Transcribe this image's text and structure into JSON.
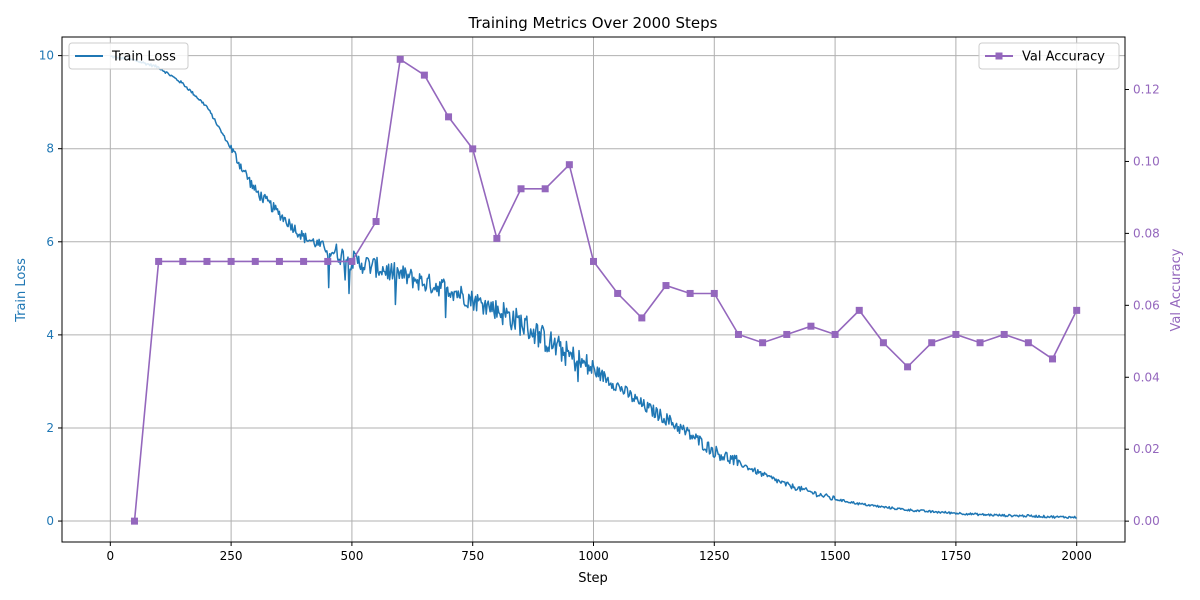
{
  "chart_data": {
    "type": "line",
    "title": "Training Metrics Over 2000 Steps",
    "xlabel": "Step",
    "ylabel_left": "Train Loss",
    "ylabel_right": "Val Accuracy",
    "xlim": [
      -100,
      2100
    ],
    "ylim_left": [
      -0.45,
      10.4
    ],
    "ylim_right": [
      -0.0058,
      0.1346
    ],
    "x_ticks": [
      0,
      250,
      500,
      750,
      1000,
      1250,
      1500,
      1750,
      2000
    ],
    "y_ticks_left": [
      0,
      2,
      4,
      6,
      8,
      10
    ],
    "y_ticks_right": [
      0.0,
      0.02,
      0.04,
      0.06,
      0.08,
      0.1,
      0.12
    ],
    "grid": true,
    "colors": {
      "train_loss": "#1f77b4",
      "val_accuracy": "#9467bd"
    },
    "series": [
      {
        "name": "Train Loss",
        "axis": "left",
        "marker": "none",
        "legend_position": "top-left",
        "points": [
          [
            0,
            9.98
          ],
          [
            50,
            9.9
          ],
          [
            100,
            9.75
          ],
          [
            150,
            9.4
          ],
          [
            200,
            8.9
          ],
          [
            250,
            8.0
          ],
          [
            300,
            7.1
          ],
          [
            350,
            6.6
          ],
          [
            400,
            6.1
          ],
          [
            450,
            5.85
          ],
          [
            500,
            5.6
          ],
          [
            550,
            5.45
          ],
          [
            600,
            5.3
          ],
          [
            650,
            5.12
          ],
          [
            700,
            5.0
          ],
          [
            750,
            4.75
          ],
          [
            800,
            4.55
          ],
          [
            850,
            4.25
          ],
          [
            900,
            3.9
          ],
          [
            950,
            3.55
          ],
          [
            1000,
            3.25
          ],
          [
            1050,
            2.9
          ],
          [
            1100,
            2.5
          ],
          [
            1150,
            2.2
          ],
          [
            1200,
            1.85
          ],
          [
            1250,
            1.5
          ],
          [
            1300,
            1.25
          ],
          [
            1350,
            1.0
          ],
          [
            1400,
            0.78
          ],
          [
            1450,
            0.62
          ],
          [
            1500,
            0.47
          ],
          [
            1550,
            0.37
          ],
          [
            1600,
            0.3
          ],
          [
            1650,
            0.24
          ],
          [
            1700,
            0.2
          ],
          [
            1750,
            0.17
          ],
          [
            1800,
            0.14
          ],
          [
            1850,
            0.12
          ],
          [
            1900,
            0.11
          ],
          [
            1950,
            0.09
          ],
          [
            2000,
            0.08
          ]
        ]
      },
      {
        "name": "Val Accuracy",
        "axis": "right",
        "marker": "square",
        "legend_position": "top-right",
        "points": [
          [
            50,
            0.0
          ],
          [
            100,
            0.0722
          ],
          [
            150,
            0.0722
          ],
          [
            200,
            0.0722
          ],
          [
            250,
            0.0722
          ],
          [
            300,
            0.0722
          ],
          [
            350,
            0.0722
          ],
          [
            400,
            0.0722
          ],
          [
            450,
            0.0722
          ],
          [
            500,
            0.0722
          ],
          [
            550,
            0.0833
          ],
          [
            600,
            0.1284
          ],
          [
            650,
            0.124
          ],
          [
            700,
            0.1124
          ],
          [
            750,
            0.1035
          ],
          [
            800,
            0.0786
          ],
          [
            850,
            0.0924
          ],
          [
            900,
            0.0924
          ],
          [
            950,
            0.0991
          ],
          [
            1000,
            0.0722
          ],
          [
            1050,
            0.0633
          ],
          [
            1100,
            0.0565
          ],
          [
            1150,
            0.0655
          ],
          [
            1200,
            0.0633
          ],
          [
            1250,
            0.0633
          ],
          [
            1300,
            0.0519
          ],
          [
            1350,
            0.0496
          ],
          [
            1400,
            0.0519
          ],
          [
            1450,
            0.0542
          ],
          [
            1500,
            0.0519
          ],
          [
            1550,
            0.0586
          ],
          [
            1600,
            0.0496
          ],
          [
            1650,
            0.0429
          ],
          [
            1700,
            0.0496
          ],
          [
            1750,
            0.0519
          ],
          [
            1800,
            0.0496
          ],
          [
            1850,
            0.0519
          ],
          [
            1900,
            0.0496
          ],
          [
            1950,
            0.0451
          ],
          [
            2000,
            0.0586
          ]
        ]
      }
    ]
  }
}
